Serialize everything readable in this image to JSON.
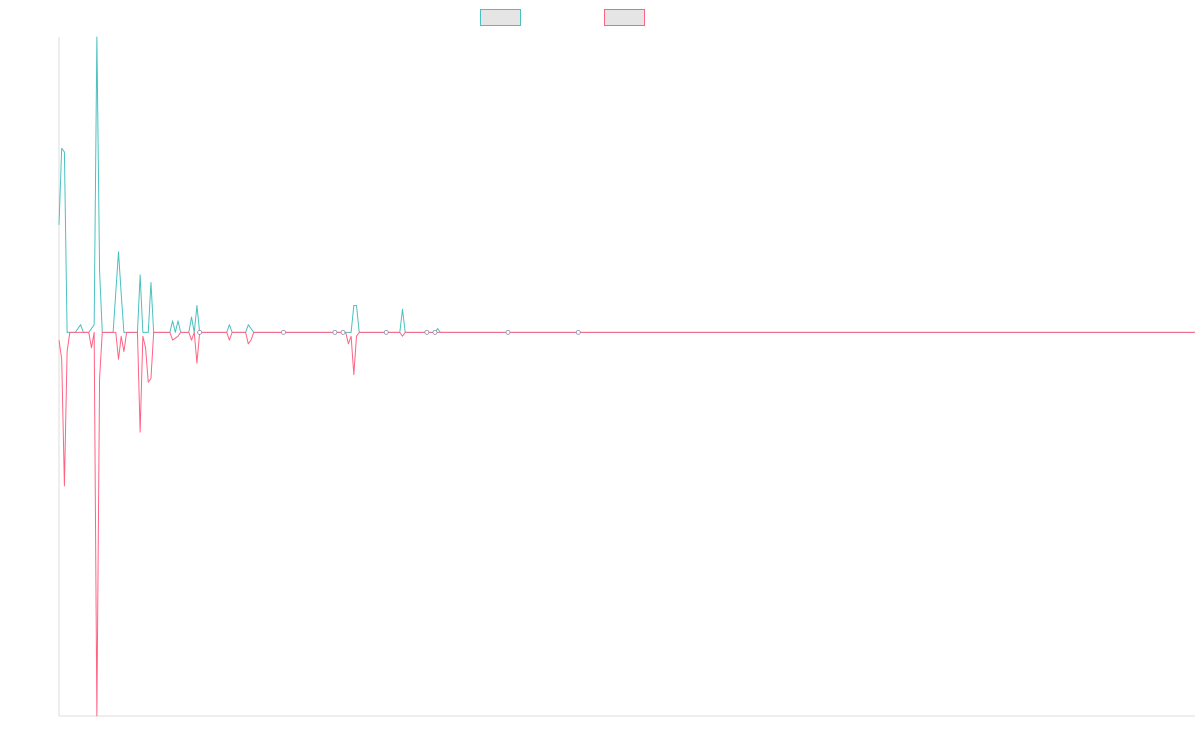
{
  "chart_data": {
    "type": "line",
    "title": "",
    "xlabel": "",
    "ylabel": "",
    "grid": false,
    "legend_position": "top-center",
    "ylim": [
      -100,
      77
    ],
    "x_range": [
      0,
      420
    ],
    "series": [
      {
        "name": "",
        "color": "#4bc0c0",
        "fill": "#e5e5e5",
        "points": [
          [
            0,
            28
          ],
          [
            1,
            48
          ],
          [
            2,
            47
          ],
          [
            3,
            0
          ],
          [
            6,
            0
          ],
          [
            8,
            2
          ],
          [
            9,
            0
          ],
          [
            11,
            0
          ],
          [
            13,
            2
          ],
          [
            14,
            77
          ],
          [
            15,
            16
          ],
          [
            16,
            0
          ],
          [
            20,
            0
          ],
          [
            22,
            21
          ],
          [
            23,
            10
          ],
          [
            24,
            0
          ],
          [
            29,
            0
          ],
          [
            30,
            15
          ],
          [
            31,
            0
          ],
          [
            33,
            0
          ],
          [
            34,
            13
          ],
          [
            35,
            0
          ],
          [
            41,
            0
          ],
          [
            42,
            3
          ],
          [
            43,
            0
          ],
          [
            44,
            3
          ],
          [
            45,
            0
          ],
          [
            48,
            0
          ],
          [
            49,
            4
          ],
          [
            50,
            0
          ],
          [
            51,
            7
          ],
          [
            52,
            0
          ],
          [
            62,
            0
          ],
          [
            63,
            2
          ],
          [
            64,
            0
          ],
          [
            69,
            0
          ],
          [
            70,
            2
          ],
          [
            71,
            1
          ],
          [
            72,
            0
          ],
          [
            108,
            0
          ],
          [
            109,
            7
          ],
          [
            110,
            7
          ],
          [
            111,
            0
          ],
          [
            126,
            0
          ],
          [
            127,
            6
          ],
          [
            128,
            0
          ],
          [
            139,
            0
          ],
          [
            140,
            1
          ],
          [
            141,
            0
          ],
          [
            420,
            0
          ]
        ]
      },
      {
        "name": "",
        "color": "#ff6384",
        "fill": "#e5e5e5",
        "points": [
          [
            0,
            -2
          ],
          [
            1,
            -7
          ],
          [
            2,
            -40
          ],
          [
            3,
            -5
          ],
          [
            4,
            0
          ],
          [
            11,
            0
          ],
          [
            12,
            -4
          ],
          [
            13,
            0
          ],
          [
            14,
            -100
          ],
          [
            15,
            -12
          ],
          [
            16,
            0
          ],
          [
            21,
            0
          ],
          [
            22,
            -7
          ],
          [
            23,
            -1
          ],
          [
            24,
            -5
          ],
          [
            25,
            0
          ],
          [
            29,
            0
          ],
          [
            30,
            -26
          ],
          [
            31,
            -1
          ],
          [
            32,
            -4
          ],
          [
            33,
            -13
          ],
          [
            34,
            -12
          ],
          [
            35,
            0
          ],
          [
            41,
            0
          ],
          [
            42,
            -2
          ],
          [
            44,
            -1
          ],
          [
            45,
            0
          ],
          [
            48,
            0
          ],
          [
            49,
            -2
          ],
          [
            50,
            0
          ],
          [
            51,
            -8
          ],
          [
            52,
            0
          ],
          [
            62,
            0
          ],
          [
            63,
            -2
          ],
          [
            64,
            0
          ],
          [
            69,
            0
          ],
          [
            70,
            -3
          ],
          [
            71,
            -2
          ],
          [
            72,
            0
          ],
          [
            106,
            0
          ],
          [
            107,
            -3
          ],
          [
            108,
            -1
          ],
          [
            109,
            -11
          ],
          [
            110,
            -1
          ],
          [
            111,
            0
          ],
          [
            126,
            0
          ],
          [
            127,
            -1
          ],
          [
            128,
            0
          ],
          [
            420,
            0
          ]
        ]
      }
    ],
    "markers": [
      {
        "x": 52,
        "y": 0
      },
      {
        "x": 83,
        "y": 0
      },
      {
        "x": 102,
        "y": 0
      },
      {
        "x": 105,
        "y": 0
      },
      {
        "x": 121,
        "y": 0
      },
      {
        "x": 136,
        "y": 0
      },
      {
        "x": 139,
        "y": 0
      },
      {
        "x": 166,
        "y": 0
      },
      {
        "x": 192,
        "y": 0
      }
    ],
    "marker_color": "#8a8aa8"
  }
}
